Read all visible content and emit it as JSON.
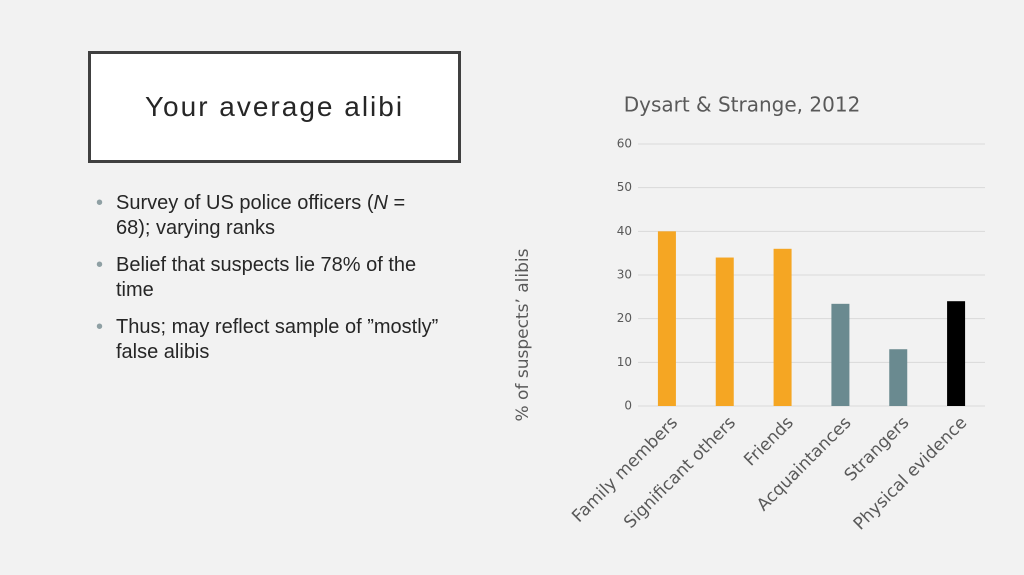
{
  "slide": {
    "title": "Your average alibi",
    "bullets": [
      [
        "Survey of US police officers (",
        "N",
        " = 68); varying ranks"
      ],
      [
        "Belief that suspects lie 78% of the time"
      ],
      [
        "Thus; may reflect sample of ”mostly” false alibis"
      ]
    ]
  },
  "chart_data": {
    "type": "bar",
    "title": "Dysart & Strange, 2012",
    "y_label": "% of suspects’ alibis",
    "categories": [
      "Family members",
      "Significant others",
      "Friends",
      "Acquaintances",
      "Strangers",
      "Physical evidence"
    ],
    "values": [
      40,
      34,
      36,
      23.4,
      13,
      24
    ],
    "colors": [
      "#f5a623",
      "#f5a623",
      "#f5a623",
      "#6a8a90",
      "#6a8a90",
      "#000000"
    ],
    "ylim": [
      0,
      60
    ],
    "yticks": [
      0,
      10,
      20,
      30,
      40,
      50,
      60
    ],
    "grid": true
  }
}
